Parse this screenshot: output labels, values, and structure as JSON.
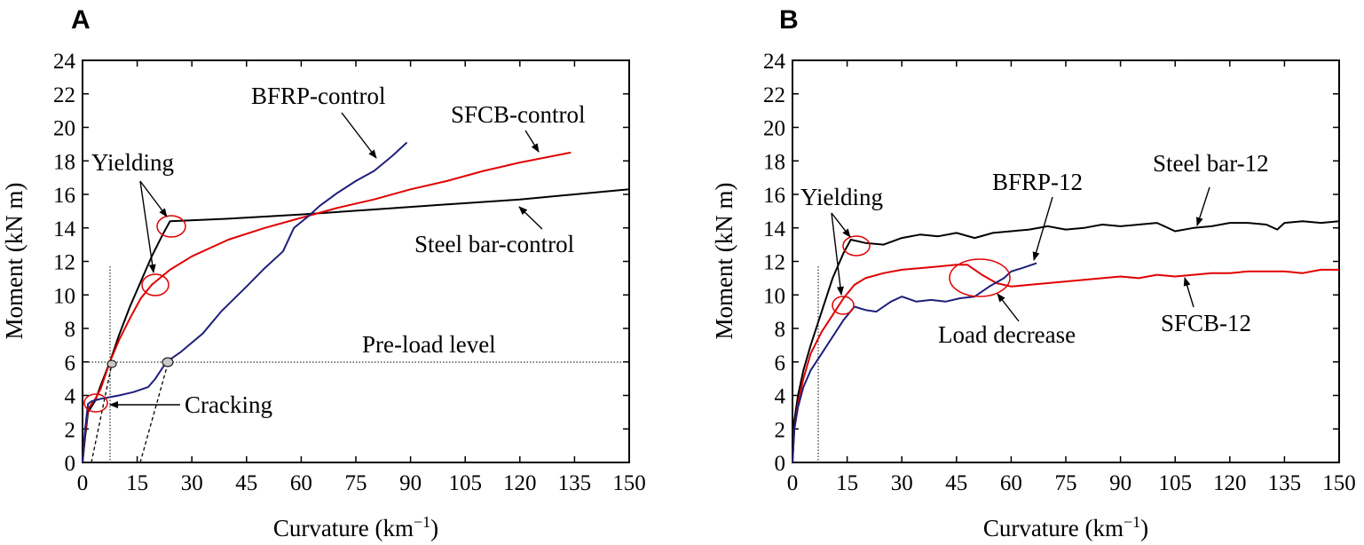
{
  "chart_data": [
    {
      "panel": "A",
      "type": "line",
      "xlabel": "Curvature (km",
      "xlabel_sup": "−1",
      "xlabel_end": ")",
      "ylabel": "Moment (kN m)",
      "xlim": [
        0,
        150
      ],
      "ylim": [
        0,
        24
      ],
      "xticks": [
        "0",
        "15",
        "30",
        "45",
        "60",
        "75",
        "90",
        "105",
        "120",
        "135",
        "150"
      ],
      "yticks": [
        "0",
        "2",
        "4",
        "6",
        "8",
        "10",
        "12",
        "14",
        "16",
        "18",
        "20",
        "22",
        "24"
      ],
      "series": [
        {
          "name": "Steel bar-control",
          "color": "#000000",
          "points": [
            [
              0,
              0
            ],
            [
              0.7,
              1.5
            ],
            [
              1.5,
              3.0
            ],
            [
              3.5,
              3.7
            ],
            [
              5,
              4.6
            ],
            [
              7.5,
              6.0
            ],
            [
              10,
              7.6
            ],
            [
              13,
              9.3
            ],
            [
              16,
              10.8
            ],
            [
              19,
              12.3
            ],
            [
              22,
              13.6
            ],
            [
              24,
              14.4
            ],
            [
              40,
              14.55
            ],
            [
              60,
              14.8
            ],
            [
              80,
              15.1
            ],
            [
              100,
              15.4
            ],
            [
              120,
              15.7
            ],
            [
              150,
              16.3
            ]
          ]
        },
        {
          "name": "SFCB-control",
          "color": "#e00000",
          "points": [
            [
              0,
              0
            ],
            [
              0.7,
              1.8
            ],
            [
              1.5,
              3.2
            ],
            [
              3.5,
              3.8
            ],
            [
              5,
              4.4
            ],
            [
              7.5,
              6.0
            ],
            [
              10,
              7.3
            ],
            [
              13,
              8.6
            ],
            [
              16,
              9.8
            ],
            [
              19,
              10.6
            ],
            [
              24,
              11.5
            ],
            [
              30,
              12.3
            ],
            [
              40,
              13.3
            ],
            [
              50,
              14.0
            ],
            [
              60,
              14.6
            ],
            [
              70,
              15.2
            ],
            [
              80,
              15.7
            ],
            [
              90,
              16.3
            ],
            [
              100,
              16.8
            ],
            [
              110,
              17.4
            ],
            [
              120,
              17.9
            ],
            [
              134,
              18.5
            ]
          ]
        },
        {
          "name": "BFRP-control",
          "color": "#1f1f7a",
          "points": [
            [
              0,
              0
            ],
            [
              0.7,
              2.0
            ],
            [
              1.5,
              3.5
            ],
            [
              2.5,
              3.65
            ],
            [
              5,
              3.8
            ],
            [
              10,
              4.0
            ],
            [
              14,
              4.2
            ],
            [
              18,
              4.5
            ],
            [
              20,
              5.0
            ],
            [
              23,
              6.0
            ],
            [
              27,
              6.6
            ],
            [
              33,
              7.7
            ],
            [
              38,
              9.0
            ],
            [
              45,
              10.5
            ],
            [
              50,
              11.6
            ],
            [
              55,
              12.6
            ],
            [
              58,
              14.0
            ],
            [
              62,
              14.7
            ],
            [
              65,
              15.3
            ],
            [
              70,
              16.1
            ],
            [
              75,
              16.8
            ],
            [
              80,
              17.4
            ],
            [
              85,
              18.3
            ],
            [
              89,
              19.1
            ]
          ]
        }
      ],
      "annotations": [
        "BFRP-control",
        "SFCB-control",
        "Yielding",
        "Steel bar-control",
        "Pre-load level",
        "Cracking"
      ],
      "preload_level": 6
    },
    {
      "panel": "B",
      "type": "line",
      "xlabel": "Curvature (km",
      "xlabel_sup": "−1",
      "xlabel_end": ")",
      "ylabel": "Moment (kN m)",
      "xlim": [
        0,
        150
      ],
      "ylim": [
        0,
        24
      ],
      "xticks": [
        "0",
        "15",
        "30",
        "45",
        "60",
        "75",
        "90",
        "105",
        "120",
        "135",
        "150"
      ],
      "yticks": [
        "0",
        "2",
        "4",
        "6",
        "8",
        "10",
        "12",
        "14",
        "16",
        "18",
        "20",
        "22",
        "24"
      ],
      "series": [
        {
          "name": "Steel bar-12",
          "color": "#000000",
          "points": [
            [
              0,
              0
            ],
            [
              0.5,
              2.5
            ],
            [
              1.5,
              4.0
            ],
            [
              3,
              5.5
            ],
            [
              5,
              7.0
            ],
            [
              8,
              9.0
            ],
            [
              11,
              11.0
            ],
            [
              14,
              12.5
            ],
            [
              16,
              13.3
            ],
            [
              20,
              13.1
            ],
            [
              25,
              13.0
            ],
            [
              30,
              13.4
            ],
            [
              35,
              13.6
            ],
            [
              40,
              13.5
            ],
            [
              45,
              13.7
            ],
            [
              50,
              13.4
            ],
            [
              55,
              13.7
            ],
            [
              60,
              13.8
            ],
            [
              65,
              13.9
            ],
            [
              70,
              14.1
            ],
            [
              75,
              13.9
            ],
            [
              80,
              14.0
            ],
            [
              85,
              14.2
            ],
            [
              90,
              14.1
            ],
            [
              95,
              14.2
            ],
            [
              100,
              14.3
            ],
            [
              105,
              13.8
            ],
            [
              110,
              14.0
            ],
            [
              115,
              14.1
            ],
            [
              120,
              14.3
            ],
            [
              125,
              14.3
            ],
            [
              130,
              14.2
            ],
            [
              133,
              13.9
            ],
            [
              135,
              14.3
            ],
            [
              140,
              14.4
            ],
            [
              145,
              14.3
            ],
            [
              150,
              14.4
            ]
          ]
        },
        {
          "name": "SFCB-12",
          "color": "#e00000",
          "points": [
            [
              0,
              0
            ],
            [
              0.5,
              2.0
            ],
            [
              1.5,
              3.5
            ],
            [
              3,
              5.0
            ],
            [
              5,
              6.5
            ],
            [
              8,
              7.8
            ],
            [
              11,
              8.8
            ],
            [
              14,
              9.8
            ],
            [
              17,
              10.6
            ],
            [
              20,
              11.0
            ],
            [
              25,
              11.3
            ],
            [
              30,
              11.5
            ],
            [
              35,
              11.6
            ],
            [
              40,
              11.7
            ],
            [
              45,
              11.8
            ],
            [
              48,
              11.8
            ],
            [
              52,
              11.2
            ],
            [
              56,
              10.7
            ],
            [
              60,
              10.5
            ],
            [
              65,
              10.6
            ],
            [
              70,
              10.7
            ],
            [
              75,
              10.8
            ],
            [
              80,
              10.9
            ],
            [
              85,
              11.0
            ],
            [
              90,
              11.1
            ],
            [
              95,
              11.0
            ],
            [
              100,
              11.2
            ],
            [
              105,
              11.1
            ],
            [
              110,
              11.2
            ],
            [
              115,
              11.3
            ],
            [
              120,
              11.3
            ],
            [
              125,
              11.4
            ],
            [
              130,
              11.4
            ],
            [
              135,
              11.4
            ],
            [
              140,
              11.3
            ],
            [
              145,
              11.5
            ],
            [
              150,
              11.5
            ]
          ]
        },
        {
          "name": "BFRP-12",
          "color": "#1f1f7a",
          "points": [
            [
              0,
              0
            ],
            [
              0.5,
              2.0
            ],
            [
              1.5,
              3.3
            ],
            [
              3,
              4.5
            ],
            [
              5,
              5.5
            ],
            [
              8,
              6.5
            ],
            [
              11,
              7.5
            ],
            [
              14,
              8.5
            ],
            [
              17,
              9.3
            ],
            [
              20,
              9.1
            ],
            [
              23,
              9.0
            ],
            [
              27,
              9.6
            ],
            [
              30,
              9.9
            ],
            [
              34,
              9.6
            ],
            [
              38,
              9.7
            ],
            [
              42,
              9.6
            ],
            [
              46,
              9.8
            ],
            [
              50,
              9.9
            ],
            [
              54,
              10.5
            ],
            [
              58,
              11.0
            ],
            [
              60,
              11.4
            ],
            [
              63,
              11.6
            ],
            [
              67,
              11.9
            ]
          ]
        }
      ],
      "annotations": [
        "Yielding",
        "BFRP-12",
        "Steel bar-12",
        "Load decrease",
        "SFCB-12"
      ]
    }
  ]
}
